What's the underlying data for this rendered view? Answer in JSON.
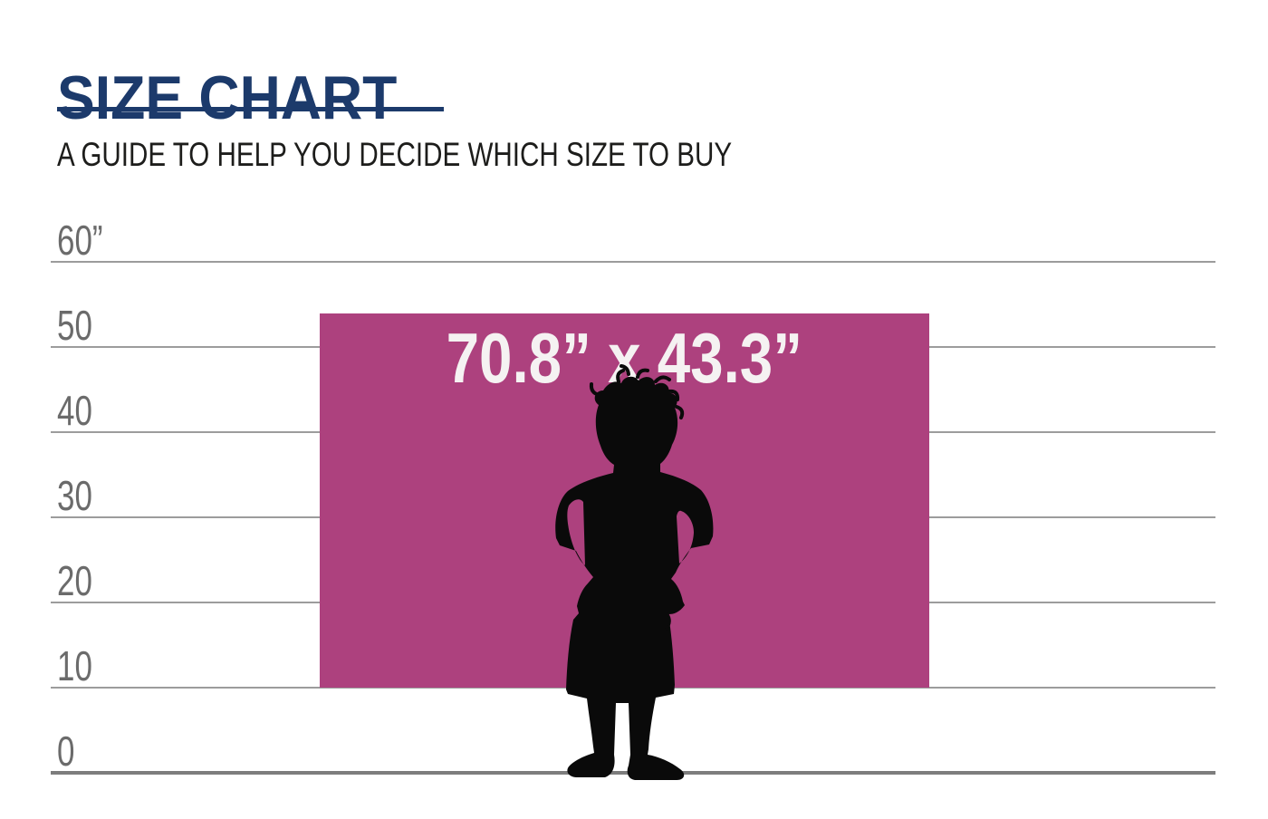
{
  "header": {
    "title": "SIZE CHART",
    "subtitle": "A GUIDE TO HELP YOU DECIDE WHICH SIZE TO BUY",
    "accent_color": "#1c3a6b",
    "subtitle_color": "#1d1d1b"
  },
  "chart_data": {
    "type": "size-comparison",
    "title": "SIZE CHART",
    "subtitle": "A GUIDE TO HELP YOU DECIDE WHICH SIZE TO BUY",
    "unit": "inches",
    "y_axis": {
      "tick_values": [
        60,
        50,
        40,
        30,
        20,
        10,
        0
      ],
      "tick_labels": [
        "60”",
        "50",
        "40",
        "30",
        "20",
        "10",
        "0"
      ],
      "label_color": "#6b6b6b",
      "line_color": "#9c9c9c",
      "baseline_color": "#7d7d7d",
      "range": [
        0,
        60
      ],
      "grid": true
    },
    "product_rect": {
      "label": "70.8” x 43.3”",
      "width_in": 70.8,
      "height_in": 43.3,
      "bottom_offset_in": 10,
      "color": "#ad417e",
      "label_color": "#f5f2f2"
    },
    "reference_figure": {
      "name": "child-silhouette",
      "approx_height_in": 45,
      "color": "#0a0a0a"
    }
  }
}
